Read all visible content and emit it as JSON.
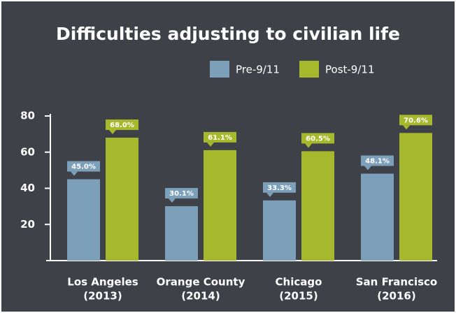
{
  "chart_data": {
    "type": "bar",
    "title": "Difficulties adjusting to civilian life",
    "categories": [
      [
        "Los Angeles",
        "(2013)"
      ],
      [
        "Orange County",
        "(2014)"
      ],
      [
        "Chicago",
        "(2015)"
      ],
      [
        "San Francisco",
        "(2016)"
      ]
    ],
    "series": [
      {
        "name": "Pre-9/11",
        "color": "#7ca0ba",
        "values": [
          45.0,
          30.1,
          33.3,
          48.1
        ],
        "value_labels": [
          "45.0%",
          "30.1%",
          "33.3%",
          "48.1%"
        ]
      },
      {
        "name": "Post-9/11",
        "color": "#a6b82c",
        "values": [
          68.0,
          61.1,
          60.5,
          70.6
        ],
        "value_labels": [
          "68.0%",
          "61.1%",
          "60.5%",
          "70.6%"
        ]
      }
    ],
    "ylim": [
      0,
      80
    ],
    "yticks": [
      20,
      40,
      60,
      80
    ]
  }
}
